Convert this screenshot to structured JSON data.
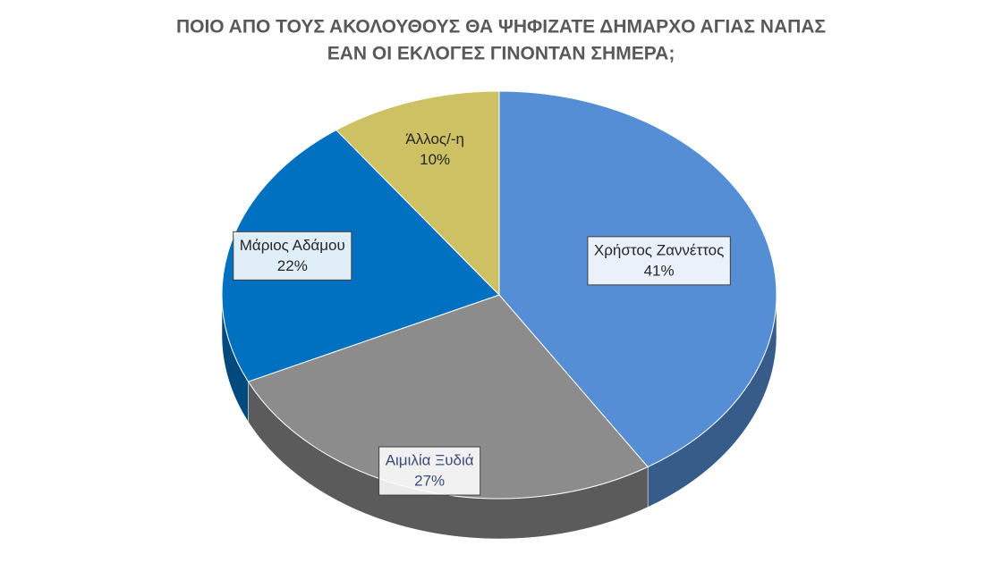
{
  "chart_data": {
    "type": "pie3d",
    "title": [
      "ΠΟΙΟ ΑΠΟ ΤΟΥΣ ΑΚΟΛΟΥΘΟΥΣ ΘΑ ΨΗΦΙΖΑΤΕ ΔΗΜΑΡΧΟ ΑΓΙΑΣ ΝΑΠΑΣ",
      "ΕΑΝ ΟΙ ΕΚΛΟΓΕΣ ΓΙΝΟΝΤΑΝ ΣΗΜΕΡΑ;"
    ],
    "categories": [
      "Χρήστος Ζαννέττος",
      "Αιμιλία Ξυδιά",
      "Μάριος Αδάμου",
      "Άλλος/-η"
    ],
    "values": [
      41,
      27,
      22,
      10
    ],
    "value_labels": [
      "41%",
      "27%",
      "22%",
      "10%"
    ],
    "colors": [
      "#558ed5",
      "#8c8c8c",
      "#0070c0",
      "#cdc163"
    ]
  }
}
